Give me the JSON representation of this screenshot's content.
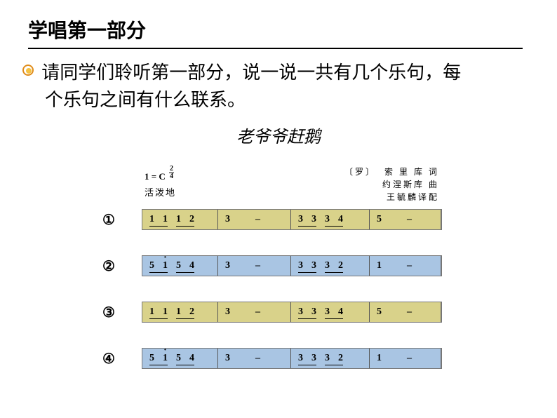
{
  "heading": "学唱第一部分",
  "bullet": {
    "line1": "请同学们聆听第一部分，说一说一共有几个乐句，每",
    "line2": "个乐句之间有什么联系。"
  },
  "song_title": "老爷爷赶鹅",
  "meta": {
    "key": "1 = C",
    "time_top": "2",
    "time_bottom": "4",
    "tempo": "活泼地",
    "credit_prefix": "〔罗〕",
    "credit1": "索 里 库 词",
    "credit2": "约涅斯库 曲",
    "credit3": "王毓麟译配"
  },
  "colors": {
    "olive": "#d9d28a",
    "blue": "#a9c5e3"
  },
  "phrases": [
    {
      "num": "①",
      "color": "olive",
      "measures": [
        {
          "beamed_pairs": [
            [
              "1",
              "1"
            ],
            [
              "1",
              "2"
            ]
          ],
          "w": "m1"
        },
        {
          "plain": [
            "3",
            "–"
          ],
          "w": "m2"
        },
        {
          "beamed_pairs": [
            [
              "3",
              "3"
            ],
            [
              "3",
              "4"
            ]
          ],
          "w": "m3"
        },
        {
          "plain": [
            "5",
            "–"
          ],
          "w": "m4"
        }
      ]
    },
    {
      "num": "②",
      "color": "blue",
      "measures": [
        {
          "beamed_pairs": [
            [
              "5",
              "i̇"
            ],
            [
              "5",
              "4"
            ]
          ],
          "dots": [
            false,
            true,
            false,
            false
          ],
          "w": "m1"
        },
        {
          "plain": [
            "3",
            "–"
          ],
          "w": "m2"
        },
        {
          "beamed_pairs": [
            [
              "3",
              "3"
            ],
            [
              "3",
              "2"
            ]
          ],
          "w": "m3"
        },
        {
          "plain": [
            "1",
            "–"
          ],
          "w": "m4"
        }
      ]
    },
    {
      "num": "③",
      "color": "olive",
      "measures": [
        {
          "beamed_pairs": [
            [
              "1",
              "1"
            ],
            [
              "1",
              "2"
            ]
          ],
          "w": "m1"
        },
        {
          "plain": [
            "3",
            "–"
          ],
          "w": "m2"
        },
        {
          "beamed_pairs": [
            [
              "3",
              "3"
            ],
            [
              "3",
              "4"
            ]
          ],
          "w": "m3"
        },
        {
          "plain": [
            "5",
            "–"
          ],
          "w": "m4"
        }
      ]
    },
    {
      "num": "④",
      "color": "blue",
      "measures": [
        {
          "beamed_pairs": [
            [
              "5",
              "i̇"
            ],
            [
              "5",
              "4"
            ]
          ],
          "dots": [
            false,
            true,
            false,
            false
          ],
          "w": "m1"
        },
        {
          "plain": [
            "3",
            "–"
          ],
          "w": "m2"
        },
        {
          "beamed_pairs": [
            [
              "3",
              "3"
            ],
            [
              "3",
              "2"
            ]
          ],
          "w": "m3"
        },
        {
          "plain": [
            "1",
            "–"
          ],
          "w": "m4"
        }
      ]
    }
  ]
}
